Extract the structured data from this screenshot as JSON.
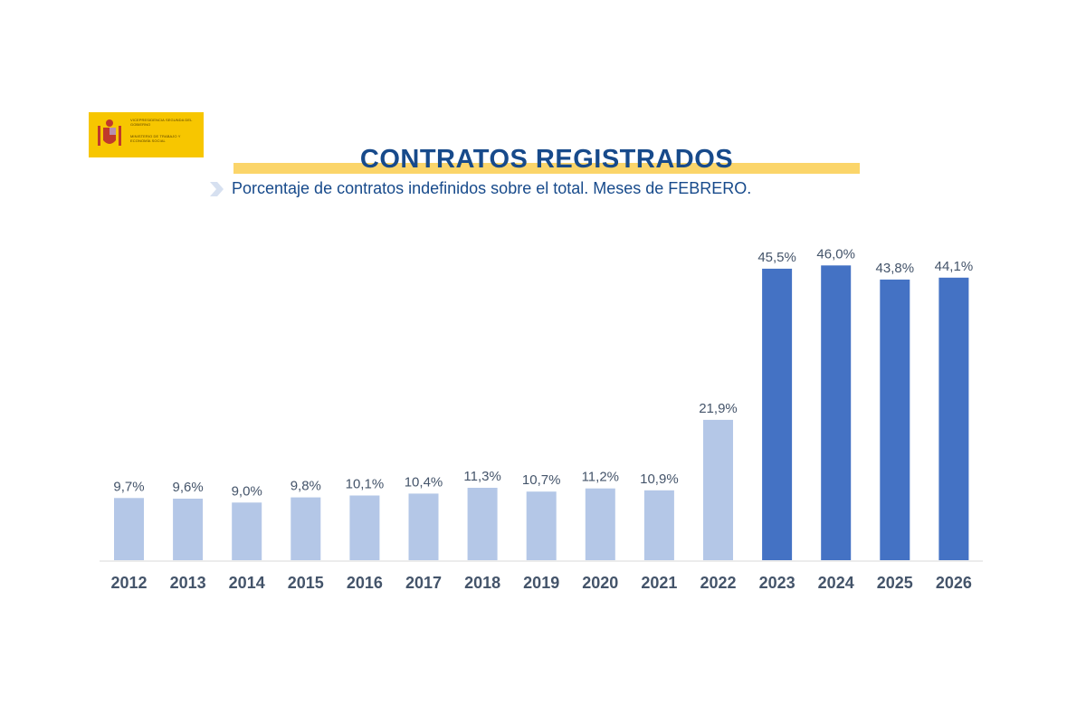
{
  "logo": {
    "line1": "VICEPRESIDENCIA SEGUNDA DEL GOBIERNO",
    "line2": "MINISTERIO DE TRABAJO Y ECONOMÍA SOCIAL"
  },
  "colors": {
    "light_bar": "#b4c7e7",
    "dark_bar": "#4472c4",
    "title": "#174a8b",
    "label": "#44546a",
    "highlight": "#fbd56a"
  },
  "chart_data": {
    "type": "bar",
    "title": "CONTRATOS REGISTRADOS",
    "subtitle": "Porcentaje de contratos indefinidos sobre el total. Meses de FEBRERO.",
    "xlabel": "",
    "ylabel": "",
    "ylim": [
      0,
      50
    ],
    "grid": false,
    "categories": [
      "2012",
      "2013",
      "2014",
      "2015",
      "2016",
      "2017",
      "2018",
      "2019",
      "2020",
      "2021",
      "2022",
      "2023",
      "2024",
      "2025",
      "2026"
    ],
    "values": [
      9.7,
      9.6,
      9.0,
      9.8,
      10.1,
      10.4,
      11.3,
      10.7,
      11.2,
      10.9,
      21.9,
      45.5,
      46.0,
      43.8,
      44.1
    ],
    "labels": [
      "9,7%",
      "9,6%",
      "9,0%",
      "9,8%",
      "10,1%",
      "10,4%",
      "11,3%",
      "10,7%",
      "11,2%",
      "10,9%",
      "21,9%",
      "45,5%",
      "46,0%",
      "43,8%",
      "44,1%"
    ],
    "highlighted_from": "2023"
  }
}
